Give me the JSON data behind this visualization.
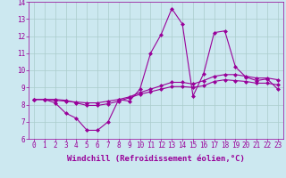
{
  "xlabel": "Windchill (Refroidissement éolien,°C)",
  "x": [
    0,
    1,
    2,
    3,
    4,
    5,
    6,
    7,
    8,
    9,
    10,
    11,
    12,
    13,
    14,
    15,
    16,
    17,
    18,
    19,
    20,
    21,
    22,
    23
  ],
  "line1": [
    8.3,
    8.3,
    8.1,
    7.5,
    7.2,
    6.5,
    6.5,
    7.0,
    8.3,
    8.2,
    8.9,
    11.0,
    12.1,
    13.6,
    12.7,
    8.5,
    9.8,
    12.2,
    12.3,
    10.2,
    9.6,
    9.4,
    9.5,
    8.9
  ],
  "line2": [
    8.3,
    8.3,
    8.25,
    8.2,
    8.15,
    8.1,
    8.1,
    8.2,
    8.3,
    8.45,
    8.7,
    8.9,
    9.1,
    9.3,
    9.3,
    9.2,
    9.4,
    9.65,
    9.75,
    9.75,
    9.65,
    9.55,
    9.55,
    9.45
  ],
  "line3": [
    8.3,
    8.3,
    8.3,
    8.25,
    8.1,
    7.95,
    7.95,
    8.05,
    8.2,
    8.4,
    8.6,
    8.75,
    8.9,
    9.05,
    9.05,
    9.0,
    9.1,
    9.35,
    9.45,
    9.4,
    9.35,
    9.25,
    9.25,
    9.15
  ],
  "line_color": "#990099",
  "bg_color": "#cce8f0",
  "grid_color": "#aacccc",
  "ylim": [
    6,
    14
  ],
  "yticks": [
    6,
    7,
    8,
    9,
    10,
    11,
    12,
    13,
    14
  ],
  "xticks": [
    0,
    1,
    2,
    3,
    4,
    5,
    6,
    7,
    8,
    9,
    10,
    11,
    12,
    13,
    14,
    15,
    16,
    17,
    18,
    19,
    20,
    21,
    22,
    23
  ],
  "tick_fontsize": 5.5,
  "label_fontsize": 6.5,
  "marker": "D",
  "markersize": 2.0,
  "linewidth": 0.8
}
